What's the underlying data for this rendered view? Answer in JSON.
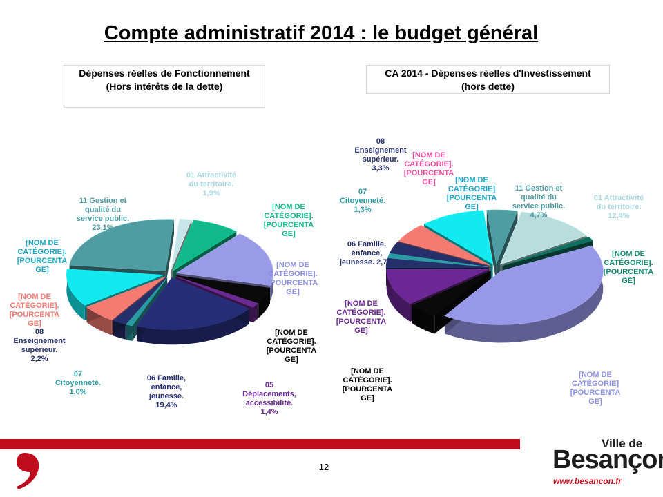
{
  "slide": {
    "title": "Compte administratif 2014 : le budget général",
    "page_number": "12"
  },
  "brand": {
    "top": "Ville de",
    "name": "Besançon",
    "url": "www.besancon.fr",
    "color": "#c00d1e"
  },
  "chart_data": [
    {
      "type": "pie",
      "title": "Dépenses réelles de Fonctionnement\n(Hors intérêts de la dette)",
      "slices": [
        {
          "label": "01 Attractivité\ndu territoire.\n1,9%",
          "value": 1.9,
          "color": "#c8e6ea",
          "label_color": "#a9d9df"
        },
        {
          "label": "[NOM DE\nCATÉGORIE].\n[POURCENTA\nGE]",
          "value": 7.5,
          "color": "#11b98a",
          "label_color": "#11b98a"
        },
        {
          "label": "[NOM DE\nCATÉGORIE].\n[POURCENTA\nGE]",
          "value": 16.5,
          "color": "#9a9be6",
          "label_color": "#8c8ee0"
        },
        {
          "label": "[NOM DE\nCATÉGORIE].\n[POURCENTA\nGE]",
          "value": 4.6,
          "color": "#0a0a0a",
          "label_color": "#000000"
        },
        {
          "label": "05\nDéplacements,\naccessibilité.\n1,4%",
          "value": 1.4,
          "color": "#6a2a8f",
          "label_color": "#6a2a8f"
        },
        {
          "label": "06 Famille,\nenfance,\njeunesse.\n19,4%",
          "value": 19.4,
          "color": "#262d77",
          "label_color": "#262d77"
        },
        {
          "label": "07\nCitoyenneté.\n1,0%",
          "value": 1.0,
          "color": "#2a9aa0",
          "label_color": "#2a9aa0"
        },
        {
          "label": "08\nEnseignement\nsupérieur.\n2,2%",
          "value": 2.2,
          "color": "#252f6a",
          "label_color": "#252f6a"
        },
        {
          "label": "[NOM DE\nCATÉGORIE].\n[POURCENTA\nGE]",
          "value": 5.4,
          "color": "#f47a72",
          "label_color": "#f47a72"
        },
        {
          "label": "[NOM DE\nCATÉGORIE].\n[POURCENTA\nGE]",
          "value": 11.1,
          "color": "#13e9ef",
          "label_color": "#1aa7c4"
        },
        {
          "label": "11 Gestion et\nqualité du\nservice public.\n23,1%",
          "value": 23.1,
          "color": "#4f9da2",
          "label_color": "#4f9da2"
        }
      ]
    },
    {
      "type": "pie",
      "title": "CA 2014 - Dépenses réelles d'Investissement\n(hors dette)",
      "slices": [
        {
          "label": "01 Attractivité\ndu territoire.\n12,4%",
          "value": 12.4,
          "color": "#b9dcdc",
          "label_color": "#a9d9df"
        },
        {
          "label": "[NOM DE\nCATÉGORIE].\n[POURCENTA\nGE]",
          "value": 1.2,
          "color": "#126e5e",
          "label_color": "#0f8a6e"
        },
        {
          "label": "[NOM DE\nCATÉGORIE]\n[POURCENTA\nGE]",
          "value": 41.0,
          "color": "#9898e8",
          "label_color": "#8c8ee0"
        },
        {
          "label": "[NOM DE\nCATÉGORIE].\n[POURCENTA\nGE]",
          "value": 4.6,
          "color": "#0a0a0a",
          "label_color": "#000000"
        },
        {
          "label": "[NOM DE\nCATÉGORIE].\n[POURCENTA\nGE]",
          "value": 10.7,
          "color": "#6b2794",
          "label_color": "#6b2794"
        },
        {
          "label": "06 Famille,\nenfance,\njeunesse. 2,7%",
          "value": 2.7,
          "color": "#252f6a",
          "label_color": "#252f6a"
        },
        {
          "label": "07\nCitoyenneté.\n1,3%",
          "value": 1.3,
          "color": "#2a9aa0",
          "label_color": "#2a9aa0"
        },
        {
          "label": "08\nEnseignement\nsupérieur.\n3,3%",
          "value": 3.3,
          "color": "#252f6a",
          "label_color": "#252f6a"
        },
        {
          "label": "[NOM DE\nCATÉGORIE].\n[POURCENTA\nGE]",
          "value": 5.7,
          "color": "#f47a72",
          "label_color": "#ee4ea0"
        },
        {
          "label": "[NOM DE\nCATÉGORIE]\n[POURCENTA\nGE]",
          "value": 10.0,
          "color": "#13e9ef",
          "label_color": "#1aa7c4"
        },
        {
          "label": "11 Gestion et\nqualité du\nservice public.\n4,7%",
          "value": 4.7,
          "color": "#4f9da2",
          "label_color": "#4f9da2"
        }
      ]
    }
  ]
}
